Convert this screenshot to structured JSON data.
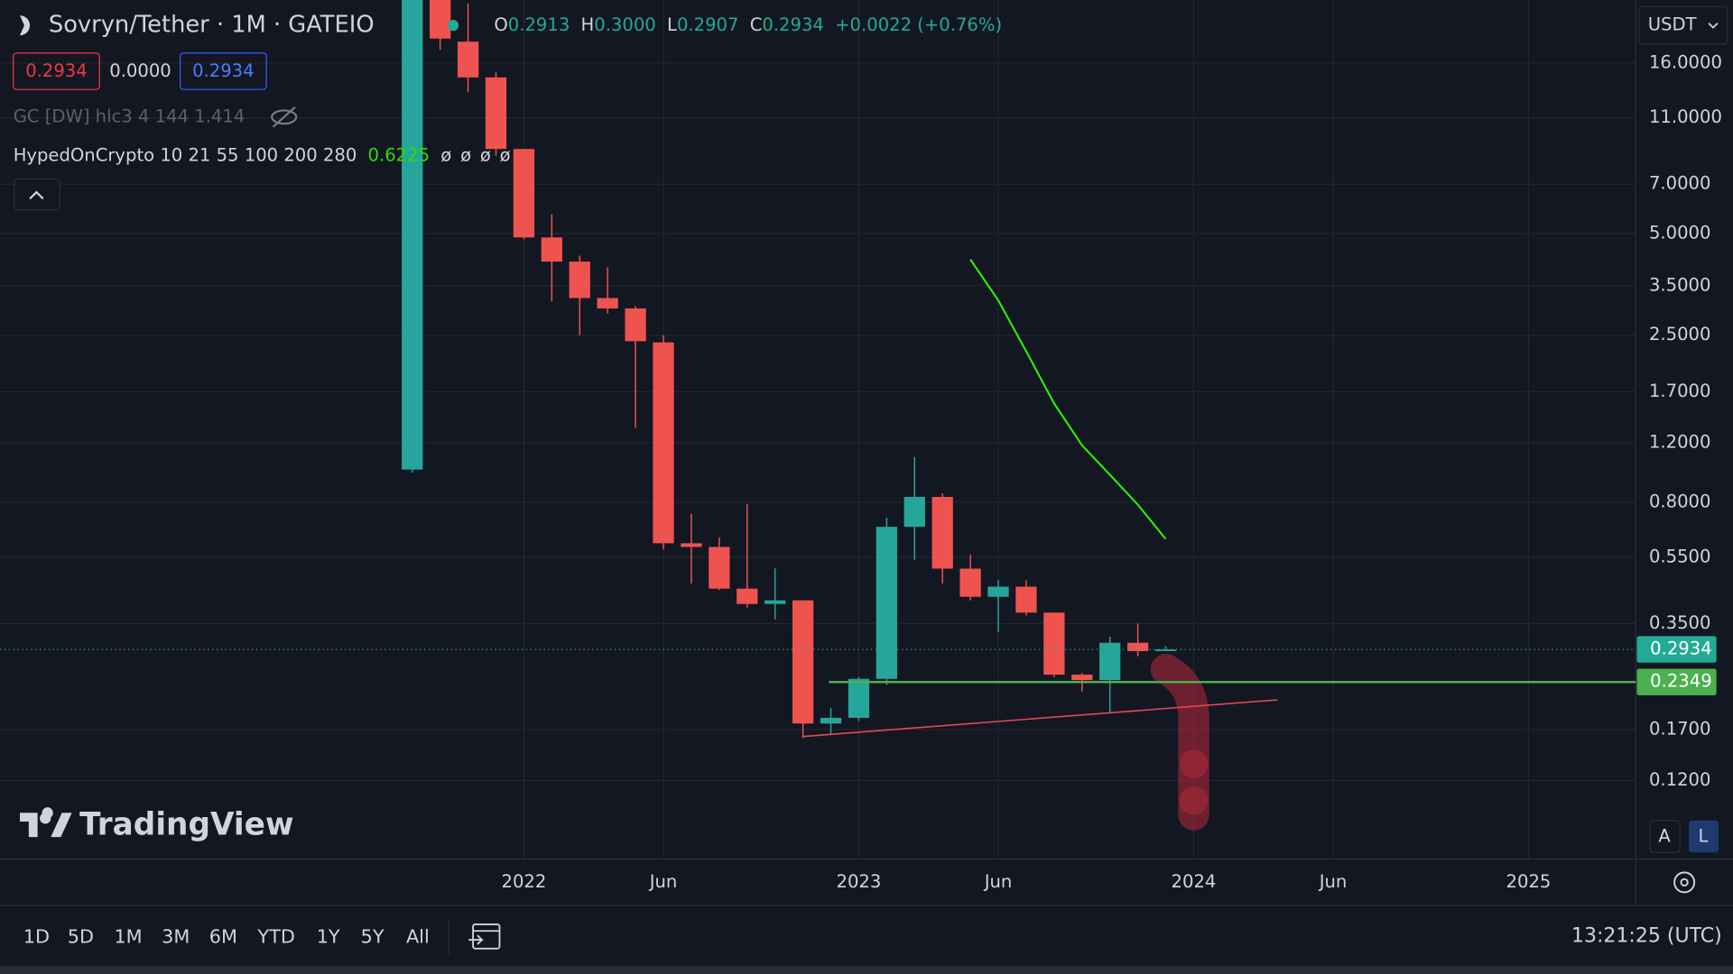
{
  "header": {
    "symbol": "Sovryn/Tether · 1M · GATEIO",
    "ohlc": [
      {
        "label": "O",
        "value": "0.2913"
      },
      {
        "label": "H",
        "value": "0.3000"
      },
      {
        "label": "L",
        "value": "0.2907"
      },
      {
        "label": "C",
        "value": "0.2934"
      }
    ],
    "change": "+0.0022 (+0.76%)",
    "boxes": [
      "0.2934",
      "0.0000",
      "0.2934"
    ],
    "indicator_1": "GC [DW] hlc3 4 144 1.414",
    "indicator_2": {
      "name": "HypedOnCrypto 10 21 55 100 200 280",
      "value": "0.6225",
      "empty": [
        "ø",
        "ø",
        "ø",
        "ø"
      ]
    },
    "currency": "USDT"
  },
  "chart_data": {
    "type": "candlestick",
    "log": true,
    "grid": true,
    "up_color": "#26a69a",
    "down_color": "#ef5350",
    "x": [
      "2021-09",
      "2021-10",
      "2021-11",
      "2021-12",
      "2022-01",
      "2022-02",
      "2022-03",
      "2022-04",
      "2022-05",
      "2022-06",
      "2022-07",
      "2022-08",
      "2022-09",
      "2022-10",
      "2022-11",
      "2022-12",
      "2023-01",
      "2023-02",
      "2023-03",
      "2023-04",
      "2023-05",
      "2023-06",
      "2023-07",
      "2023-08",
      "2023-09",
      "2023-10",
      "2023-11",
      "2023-12"
    ],
    "open": [
      1.0,
      26,
      18.5,
      14.5,
      8.9,
      4.87,
      4.13,
      3.22,
      3.0,
      2.38,
      0.605,
      0.59,
      0.444,
      0.4,
      0.41,
      0.177,
      0.184,
      0.24,
      0.677,
      0.83,
      0.509,
      0.42,
      0.45,
      0.377,
      0.247,
      0.238,
      0.307,
      0.2913
    ],
    "high": [
      28,
      27,
      24,
      15.0,
      8.9,
      5.7,
      4.3,
      3.97,
      3.05,
      2.5,
      0.74,
      0.63,
      0.79,
      0.51,
      0.41,
      0.197,
      0.243,
      0.72,
      1.09,
      0.85,
      0.56,
      0.47,
      0.47,
      0.377,
      0.25,
      0.32,
      0.35,
      0.3
    ],
    "low": [
      0.98,
      17.5,
      13.1,
      8.5,
      4.8,
      3.15,
      2.5,
      2.9,
      1.33,
      0.58,
      0.46,
      0.44,
      0.39,
      0.36,
      0.16,
      0.165,
      0.18,
      0.23,
      0.54,
      0.46,
      0.41,
      0.33,
      0.37,
      0.243,
      0.22,
      0.19,
      0.28,
      0.2907
    ],
    "close": [
      26,
      18.9,
      14.5,
      8.9,
      4.87,
      4.13,
      3.22,
      3.0,
      2.4,
      0.605,
      0.59,
      0.444,
      0.4,
      0.41,
      0.177,
      0.184,
      0.24,
      0.677,
      0.83,
      0.509,
      0.42,
      0.45,
      0.377,
      0.247,
      0.238,
      0.307,
      0.29,
      0.2934
    ],
    "indicator": {
      "color": "#2bff00",
      "x": [
        "2023-05",
        "2023-06",
        "2023-07",
        "2023-08",
        "2023-09",
        "2023-10",
        "2023-11",
        "2023-12"
      ],
      "values": [
        4.19,
        3.17,
        2.24,
        1.57,
        1.18,
        0.965,
        0.787,
        0.6225
      ]
    },
    "trendline": {
      "color": "#e5485a",
      "x": [
        "2022-11",
        "2024-04"
      ],
      "values": [
        0.162,
        0.208
      ]
    },
    "price_lines": [
      {
        "value": 0.2934,
        "color": "#22ab94",
        "style": "dotted"
      },
      {
        "value": 0.2349,
        "color": "#4caf50",
        "style": "solid"
      }
    ],
    "xlim": [
      "2020-06",
      "2025-04"
    ],
    "ylim": [
      0.0702,
      24.58
    ],
    "xticks": [
      {
        "value": "2022-01",
        "label": "2022"
      },
      {
        "value": "2022-06",
        "label": "Jun"
      },
      {
        "value": "2023-01",
        "label": "2023"
      },
      {
        "value": "2023-06",
        "label": "Jun"
      },
      {
        "value": "2024-01",
        "label": "2024"
      },
      {
        "value": "2024-06",
        "label": "Jun"
      },
      {
        "value": "2025-01",
        "label": "2025"
      }
    ],
    "yticks": [
      {
        "value": 16,
        "label": "16.0000"
      },
      {
        "value": 11,
        "label": "11.0000"
      },
      {
        "value": 7,
        "label": "7.0000"
      },
      {
        "value": 5,
        "label": "5.0000"
      },
      {
        "value": 3.5,
        "label": "3.5000"
      },
      {
        "value": 2.5,
        "label": "2.5000"
      },
      {
        "value": 1.7,
        "label": "1.7000"
      },
      {
        "value": 1.2,
        "label": "1.2000"
      },
      {
        "value": 0.8,
        "label": "0.8000"
      },
      {
        "value": 0.55,
        "label": "0.5500"
      },
      {
        "value": 0.35,
        "label": "0.3500"
      },
      {
        "value": 0.17,
        "label": "0.1700"
      },
      {
        "value": 0.12,
        "label": "0.1200"
      }
    ]
  },
  "watermark": "TradingView",
  "scale_buttons": [
    "A",
    "L"
  ],
  "toolbar": {
    "ranges": [
      "1D",
      "5D",
      "1M",
      "3M",
      "6M",
      "YTD",
      "1Y",
      "5Y",
      "All"
    ],
    "clock": "13:21:25 (UTC)"
  }
}
